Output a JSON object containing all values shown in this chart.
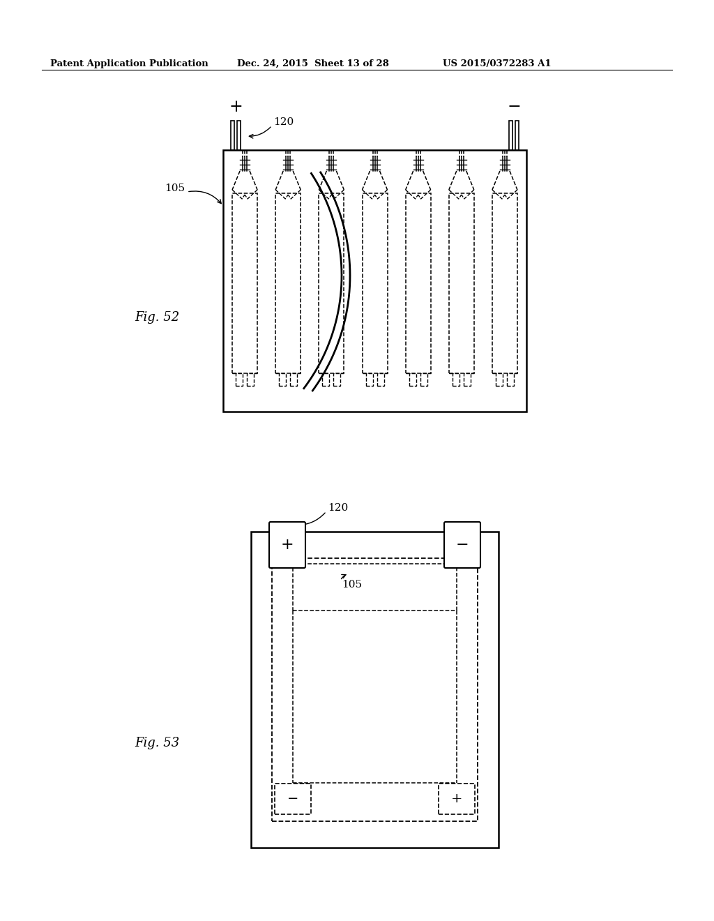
{
  "bg_color": "#ffffff",
  "header_text": "Patent Application Publication",
  "header_date": "Dec. 24, 2015  Sheet 13 of 28",
  "header_patent": "US 2015/0372283 A1",
  "fig52_label": "Fig. 52",
  "fig53_label": "Fig. 53",
  "label_105_fig52": "105",
  "label_120_fig52": "120",
  "label_105_fig53": "105",
  "label_120_fig53": "120",
  "minus": "−"
}
